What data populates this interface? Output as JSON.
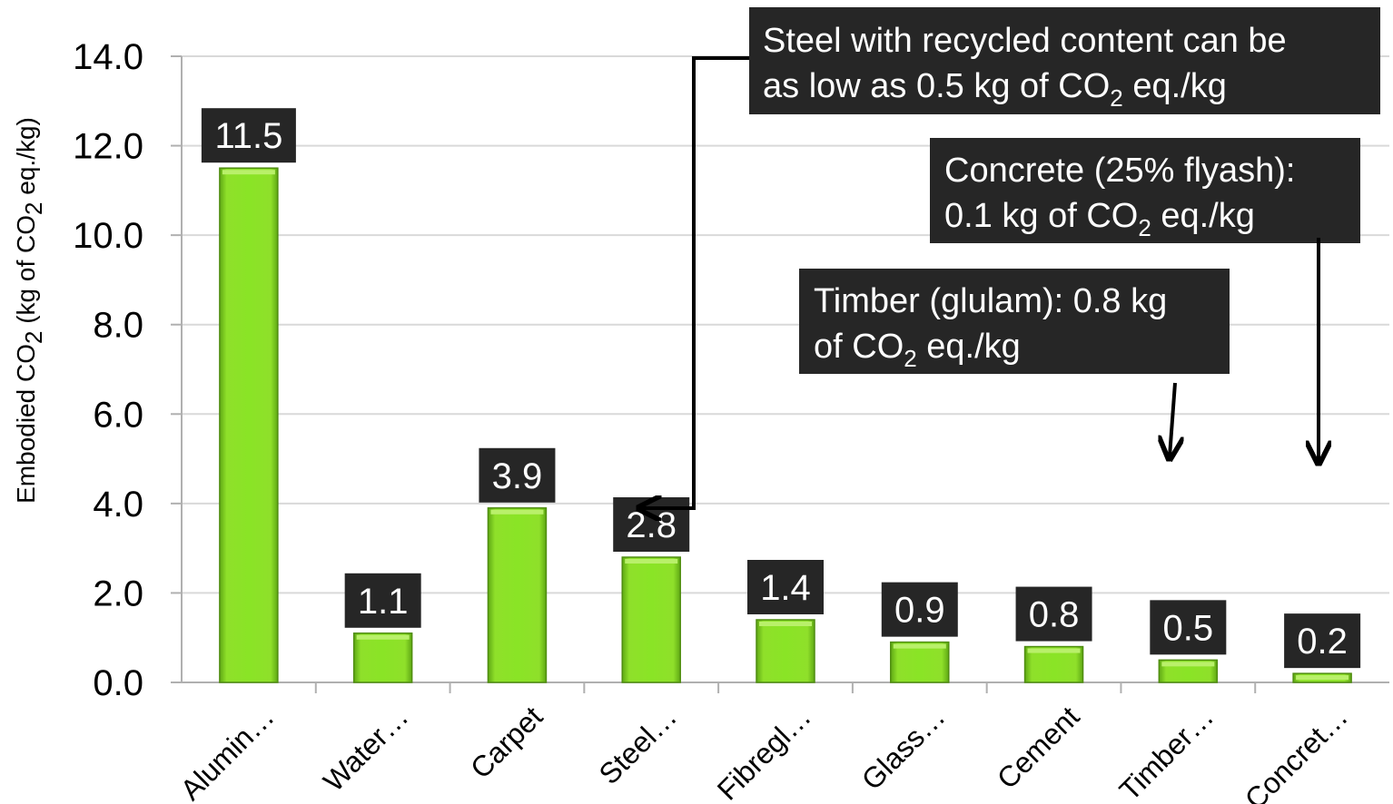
{
  "chart_data": {
    "type": "bar",
    "ylabel": {
      "pre": "Embodied CO",
      "sub": "2",
      "post": " (kg of CO",
      "sub2": "2",
      "post2": " eq./kg)"
    },
    "ylim": [
      0,
      14
    ],
    "yticks": [
      "0.0",
      "2.0",
      "4.0",
      "6.0",
      "8.0",
      "10.0",
      "12.0",
      "14.0"
    ],
    "grid": true,
    "categories": [
      "Alumin…",
      "Water…",
      "Carpet",
      "Steel…",
      "Fibregl…",
      "Glass…",
      "Cement",
      "Timber…",
      "Concret…"
    ],
    "values": [
      11.5,
      1.1,
      3.9,
      2.8,
      1.4,
      0.9,
      0.8,
      0.5,
      0.2
    ],
    "data_labels": [
      "11.5",
      "1.1",
      "3.9",
      "2.8",
      "1.4",
      "0.9",
      "0.8",
      "0.5",
      "0.2"
    ],
    "bar_color": "#7ED321",
    "label_bg": "#262626",
    "annotations": [
      {
        "id": "steel",
        "lines": [
          {
            "text": "Steel with recycled content can be"
          },
          {
            "pre": "as low as 0.5 kg of CO",
            "sub": "2",
            "post": " eq./kg"
          }
        ]
      },
      {
        "id": "concrete",
        "lines": [
          {
            "text": "Concrete (25% flyash):"
          },
          {
            "pre": "0.1 kg of CO",
            "sub": "2",
            "post": " eq./kg"
          }
        ]
      },
      {
        "id": "timber",
        "lines": [
          {
            "text": "Timber (glulam): 0.8 kg"
          },
          {
            "pre": "of CO",
            "sub": "2",
            "post": " eq./kg"
          }
        ]
      }
    ]
  }
}
